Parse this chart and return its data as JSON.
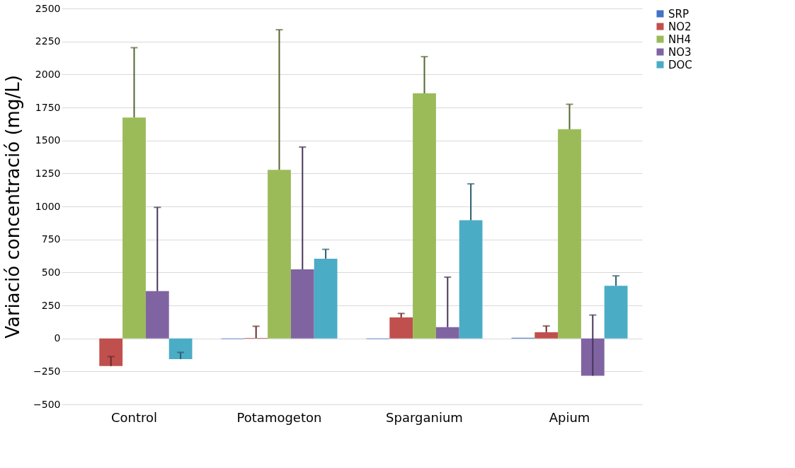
{
  "chart_data": {
    "type": "bar",
    "ylabel": "Variació concentració  (mg/L)",
    "categories": [
      "Control",
      "Potamogeton",
      "Sparganium",
      "Apium"
    ],
    "series": [
      {
        "name": "SRP",
        "color": "#4472c4",
        "values": [
          0,
          -5,
          -5,
          5
        ]
      },
      {
        "name": "NO2",
        "color": "#c0504d",
        "values": [
          -210,
          3,
          159,
          47
        ],
        "errors": [
          [
            -210,
            -138
          ],
          [
            3,
            92
          ],
          [
            159,
            189
          ],
          [
            47,
            94
          ]
        ]
      },
      {
        "name": "NH4",
        "color": "#9bbb59",
        "values": [
          1674,
          1277,
          1857,
          1585
        ],
        "errors": [
          [
            1674,
            2203
          ],
          [
            1277,
            2339
          ],
          [
            1857,
            2135
          ],
          [
            1585,
            1774
          ]
        ]
      },
      {
        "name": "NO3",
        "color": "#8064a2",
        "values": [
          358,
          523,
          85,
          -283
        ],
        "errors": [
          [
            358,
            993
          ],
          [
            523,
            1450
          ],
          [
            85,
            464
          ],
          [
            -283,
            177
          ]
        ]
      },
      {
        "name": "DOC",
        "color": "#4bacc6",
        "values": [
          -157,
          604,
          895,
          399
        ],
        "errors": [
          [
            -157,
            -106
          ],
          [
            604,
            675
          ],
          [
            895,
            1171
          ],
          [
            399,
            474
          ]
        ]
      }
    ],
    "ylim": [
      -500,
      2500
    ],
    "yticks": [
      -500,
      -250,
      0,
      250,
      500,
      750,
      1000,
      1250,
      1500,
      1750,
      2000,
      2250,
      2500
    ],
    "grid": "y",
    "legend": "right"
  }
}
